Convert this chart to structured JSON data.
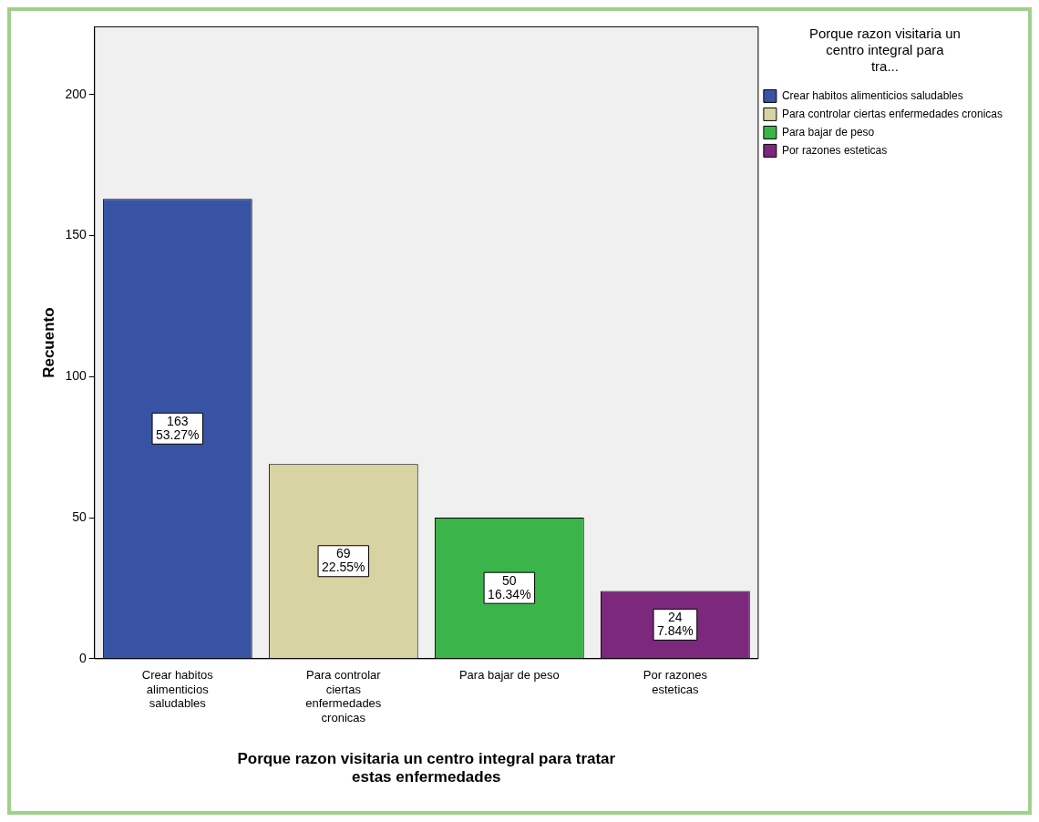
{
  "chart_data": {
    "type": "bar",
    "xlabel": "Porque razon visitaria un centro integral para tratar estas enfermedades",
    "ylabel": "Recuento",
    "legend_title": "Porque razon visitaria un centro integral para tra...",
    "categories": [
      "Crear habitos alimenticios saludables",
      "Para controlar ciertas enfermedades cronicas",
      "Para bajar de peso",
      "Por razones esteticas"
    ],
    "series": [
      {
        "name": "Crear habitos alimenticios saludables",
        "color": "#3953a4",
        "values": [
          163,
          null,
          null,
          null
        ],
        "value_labels": [
          "163\n53.27%",
          null,
          null,
          null
        ]
      },
      {
        "name": "Para controlar ciertas enfermedades cronicas",
        "color": "#d8d3a2",
        "values": [
          null,
          69,
          null,
          null
        ],
        "value_labels": [
          null,
          "69\n22.55%",
          null,
          null
        ]
      },
      {
        "name": "Para bajar de peso",
        "color": "#3bb54a",
        "values": [
          null,
          null,
          50,
          null
        ],
        "value_labels": [
          null,
          null,
          "50\n16.34%",
          null
        ]
      },
      {
        "name": "Por razones esteticas",
        "color": "#7b287d",
        "values": [
          null,
          null,
          null,
          24
        ],
        "value_labels": [
          null,
          null,
          null,
          "24\n7.84%"
        ]
      }
    ],
    "ylim": [
      0,
      224
    ],
    "yticks": [
      0,
      50,
      100,
      150,
      200
    ],
    "grid": false,
    "legend": "top right"
  }
}
